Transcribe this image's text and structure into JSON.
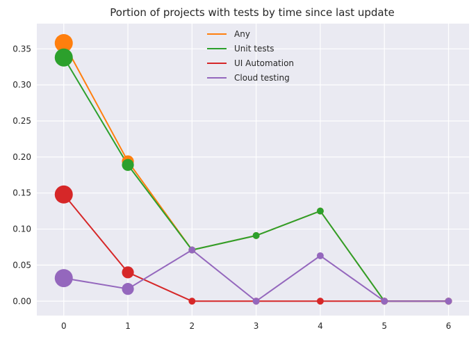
{
  "chart_data": {
    "type": "line",
    "title": "Portion of projects with tests by time since last update",
    "xlabel": "",
    "ylabel": "",
    "x": [
      0,
      1,
      2,
      3,
      4,
      5,
      6
    ],
    "xticks": [
      "0",
      "1",
      "2",
      "3",
      "4",
      "5",
      "6"
    ],
    "yticks": [
      "0.00",
      "0.05",
      "0.10",
      "0.15",
      "0.20",
      "0.25",
      "0.30",
      "0.35"
    ],
    "xlim": [
      -0.42,
      6.32
    ],
    "ylim": [
      -0.02,
      0.385
    ],
    "grid": true,
    "background_color": "#eaeaf2",
    "grid_color": "#ffffff",
    "legend_position": "top-center",
    "marker_size_note": "marker size shrinks with time since last update",
    "series": [
      {
        "name": "Any",
        "color": "#ff7f0e",
        "values": [
          0.358,
          0.194,
          0.071,
          0.091,
          0.125,
          0.0,
          0.0
        ]
      },
      {
        "name": "Unit tests",
        "color": "#2ca02c",
        "values": [
          0.338,
          0.189,
          0.071,
          0.091,
          0.125,
          0.0,
          0.0
        ]
      },
      {
        "name": "UI Automation",
        "color": "#d62728",
        "values": [
          0.148,
          0.04,
          0.0,
          0.0,
          0.0,
          0.0,
          0.0
        ]
      },
      {
        "name": "Cloud testing",
        "color": "#9467bd",
        "values": [
          0.032,
          0.017,
          0.071,
          0.0,
          0.063,
          0.0,
          0.0
        ]
      }
    ],
    "marker_weights": [
      1.0,
      0.55,
      0.18,
      0.18,
      0.18,
      0.18,
      0.18
    ]
  }
}
